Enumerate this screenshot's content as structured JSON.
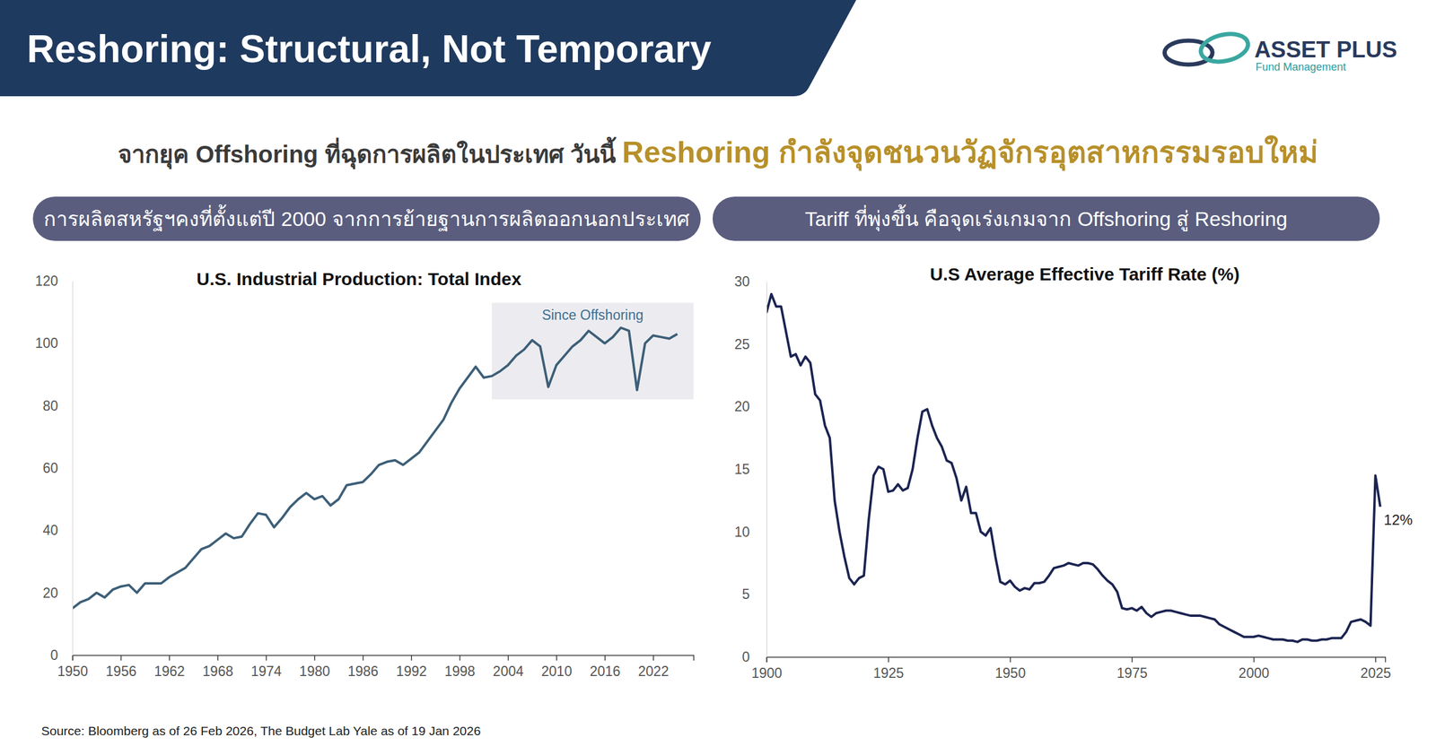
{
  "header": {
    "title": "Reshoring: Structural, Not Temporary",
    "logo": "ASSET PLUS",
    "logo_sub": "Fund Management"
  },
  "headline": {
    "part1": "จากยุค Offshoring ที่ฉุดการผลิตในประเทศ วันนี้",
    "part2": "Reshoring กำลังจุดชนวนวัฏจักรอุตสาหกรรมรอบใหม่"
  },
  "chart_data": [
    {
      "type": "line",
      "subtitle": "การผลิตสหรัฐฯคงที่ตั้งแต่ปี 2000 จากการย้ายฐานการผลิตออกนอกประเทศ",
      "title": "U.S. Industrial Production: Total Index",
      "color": "#3d5f78",
      "grid": false,
      "x": [
        1950,
        1951,
        1952,
        1953,
        1954,
        1955,
        1956,
        1957,
        1958,
        1959,
        1960,
        1961,
        1962,
        1963,
        1964,
        1965,
        1966,
        1967,
        1968,
        1969,
        1970,
        1971,
        1972,
        1973,
        1974,
        1975,
        1976,
        1977,
        1978,
        1979,
        1980,
        1981,
        1982,
        1983,
        1984,
        1985,
        1986,
        1987,
        1988,
        1989,
        1990,
        1991,
        1992,
        1993,
        1994,
        1995,
        1996,
        1997,
        1998,
        1999,
        2000,
        2001,
        2002,
        2003,
        2004,
        2005,
        2006,
        2007,
        2008,
        2009,
        2010,
        2011,
        2012,
        2013,
        2014,
        2015,
        2016,
        2017,
        2018,
        2019,
        2020,
        2021,
        2022,
        2023,
        2024,
        2025
      ],
      "values": [
        15,
        17,
        18,
        20,
        18.5,
        21,
        22,
        22.5,
        20,
        23,
        23,
        23,
        25,
        26.5,
        28,
        31,
        34,
        35,
        37,
        39,
        37.5,
        38,
        42,
        45.5,
        45,
        41,
        44,
        47.5,
        50,
        52,
        50,
        51,
        48,
        50,
        54.5,
        55,
        55.5,
        58,
        61,
        62,
        62.5,
        61,
        63,
        65,
        68.5,
        72,
        75.5,
        81,
        85.5,
        89,
        92.5,
        89,
        89.5,
        91,
        93,
        96,
        98,
        101,
        99,
        86,
        93,
        96,
        99,
        101,
        104,
        102,
        100,
        102,
        105,
        104,
        85,
        100,
        102.5,
        102,
        101.5,
        103
      ],
      "xlim": [
        1950,
        2027
      ],
      "xticks": [
        1950,
        1956,
        1962,
        1968,
        1974,
        1980,
        1986,
        1992,
        1998,
        2004,
        2010,
        2016,
        2022
      ],
      "ylim": [
        0,
        120
      ],
      "yticks": [
        0,
        20,
        40,
        60,
        80,
        100,
        120
      ],
      "annotation": {
        "text": "Since Offshoring",
        "xlim": [
          2002,
          2027
        ],
        "ylim": [
          82,
          113
        ]
      }
    },
    {
      "type": "line",
      "subtitle": "Tariff ที่พุ่งขึ้น คือจุดเร่งเกมจาก Offshoring สู่ Reshoring",
      "title": "U.S Average Effective Tariff Rate (%)",
      "color": "#1b2451",
      "grid": false,
      "x": [
        1900,
        1901,
        1902,
        1903,
        1904,
        1905,
        1906,
        1907,
        1908,
        1909,
        1910,
        1911,
        1912,
        1913,
        1914,
        1915,
        1916,
        1917,
        1918,
        1919,
        1920,
        1921,
        1922,
        1923,
        1924,
        1925,
        1926,
        1927,
        1928,
        1929,
        1930,
        1931,
        1932,
        1933,
        1934,
        1935,
        1936,
        1937,
        1938,
        1939,
        1940,
        1941,
        1942,
        1943,
        1944,
        1945,
        1946,
        1947,
        1948,
        1949,
        1950,
        1951,
        1952,
        1953,
        1954,
        1955,
        1956,
        1957,
        1958,
        1959,
        1960,
        1961,
        1962,
        1963,
        1964,
        1965,
        1966,
        1967,
        1968,
        1969,
        1970,
        1971,
        1972,
        1973,
        1974,
        1975,
        1976,
        1977,
        1978,
        1979,
        1980,
        1981,
        1982,
        1983,
        1984,
        1985,
        1986,
        1987,
        1988,
        1989,
        1990,
        1991,
        1992,
        1993,
        1994,
        1995,
        1996,
        1997,
        1998,
        1999,
        2000,
        2001,
        2002,
        2003,
        2004,
        2005,
        2006,
        2007,
        2008,
        2009,
        2010,
        2011,
        2012,
        2013,
        2014,
        2015,
        2016,
        2017,
        2018,
        2019,
        2020,
        2021,
        2022,
        2023,
        2024,
        2025,
        2026
      ],
      "values": [
        27.5,
        29,
        28,
        28,
        26,
        24,
        24.2,
        23.3,
        24,
        23.5,
        21,
        20.5,
        18.5,
        17.5,
        12.5,
        10,
        8,
        6.3,
        5.8,
        6.3,
        6.5,
        11,
        14.5,
        15.2,
        15,
        13.2,
        13.3,
        13.8,
        13.3,
        13.5,
        15,
        17.5,
        19.6,
        19.8,
        18.5,
        17.5,
        16.8,
        15.7,
        15.5,
        14.3,
        12.5,
        13.6,
        11.5,
        11.5,
        10,
        9.7,
        10.3,
        8,
        6,
        5.8,
        6.1,
        5.6,
        5.3,
        5.5,
        5.4,
        5.9,
        5.9,
        6,
        6.5,
        7.1,
        7.2,
        7.3,
        7.5,
        7.4,
        7.3,
        7.5,
        7.5,
        7.4,
        7,
        6.5,
        6.1,
        5.8,
        5.2,
        3.9,
        3.8,
        3.9,
        3.7,
        4,
        3.5,
        3.2,
        3.5,
        3.6,
        3.7,
        3.7,
        3.6,
        3.5,
        3.4,
        3.3,
        3.3,
        3.3,
        3.2,
        3.1,
        3,
        2.6,
        2.4,
        2.2,
        2,
        1.8,
        1.6,
        1.6,
        1.6,
        1.7,
        1.6,
        1.5,
        1.4,
        1.4,
        1.4,
        1.3,
        1.3,
        1.2,
        1.4,
        1.4,
        1.3,
        1.3,
        1.4,
        1.4,
        1.5,
        1.5,
        1.5,
        2,
        2.8,
        2.9,
        3,
        2.8,
        2.5,
        14.5,
        12
      ],
      "xlim": [
        1900,
        2027
      ],
      "xticks": [
        1900,
        1925,
        1950,
        1975,
        2000,
        2025
      ],
      "ylim": [
        0,
        30
      ],
      "yticks": [
        0,
        5,
        10,
        15,
        20,
        25,
        30
      ],
      "annotation": {
        "text": "12%",
        "x": 2026,
        "y": 12
      }
    }
  ],
  "source": "Source: Bloomberg as of 26 Feb 2026, The Budget Lab Yale as of 19 Jan 2026"
}
